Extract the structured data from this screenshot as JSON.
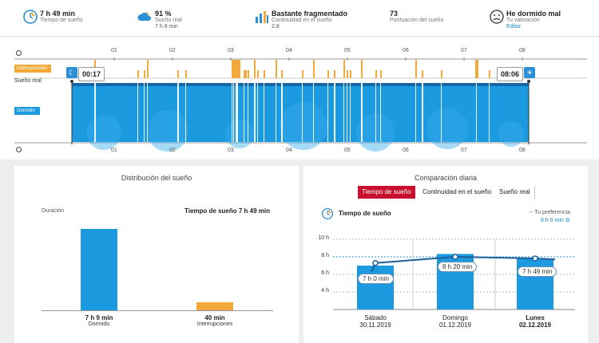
{
  "stats": [
    {
      "value": "7 h 49 min",
      "sub": "Tiempo de sueño",
      "sub2": "",
      "icon": "clock-moon-icon"
    },
    {
      "value": "91 %",
      "sub": "Sueño real",
      "sub2": "7 h 9 min",
      "icon": "cloud-moon-icon"
    },
    {
      "value": "Bastante fragmentado",
      "sub": "Continuidad en el sueño",
      "sub2": "2.8",
      "icon": "bars-icon"
    },
    {
      "value": "73",
      "sub": "Puntuación del sueño",
      "sub2": "",
      "icon": ""
    },
    {
      "value": "He dormido mal",
      "sub": "Tu valoración",
      "sub2": "Editar",
      "icon": "sad-face-icon"
    }
  ],
  "timeline": {
    "hours": [
      "01",
      "02",
      "03",
      "04",
      "05",
      "06",
      "07",
      "08"
    ],
    "label_interruptions": "Interrupciones",
    "label_real": "Sueño real",
    "label_asleep": "Dormido",
    "start_time": "00:17",
    "end_time": "08:06"
  },
  "distribution": {
    "title": "Distribución del sueño",
    "axis_label": "Duración",
    "total_label": "Tiempo de sueño 7 h 49 min",
    "bars": [
      {
        "value_label": "7 h 9 min",
        "name": "Dormido",
        "minutes": 429,
        "color": "#1b9ae0"
      },
      {
        "value_label": "40 min",
        "name": "Interrupciones",
        "minutes": 40,
        "color": "#f2a93a"
      }
    ]
  },
  "comparison": {
    "title": "Comparación diaria",
    "tabs": [
      "Tiempo de sueño",
      "Continuidad en el sueño",
      "Sueño real"
    ],
    "active_tab": 0,
    "chart_title": "Tiempo de sueño",
    "preference_label": "Tu preferencia",
    "preference_value": "8 h 0 min",
    "yticks": [
      "10 h",
      "8 h",
      "6 h",
      "4 h"
    ]
  },
  "chart_data": {
    "type": "bar",
    "title": "Tiempo de sueño",
    "categories": [
      "Sábado 30.11.2019",
      "Domingo 01.12.2019",
      "Lunes 02.12.2019"
    ],
    "category_day": [
      "Sábado",
      "Domingo",
      "Lunes"
    ],
    "category_date": [
      "30.11.2019",
      "01.12.2019",
      "02.12.2019"
    ],
    "bar_labels": [
      "7 h 0 min",
      "8 h 20 min",
      "7 h 49 min"
    ],
    "values": [
      7.0,
      8.33,
      7.82
    ],
    "line_values": [
      7.3,
      8.0,
      7.82
    ],
    "ylim": [
      2,
      10
    ],
    "yticks": [
      10,
      8,
      6,
      4
    ],
    "reference": 8,
    "bar_color": "#1b9ae0",
    "line_color": "#1e5f99"
  }
}
